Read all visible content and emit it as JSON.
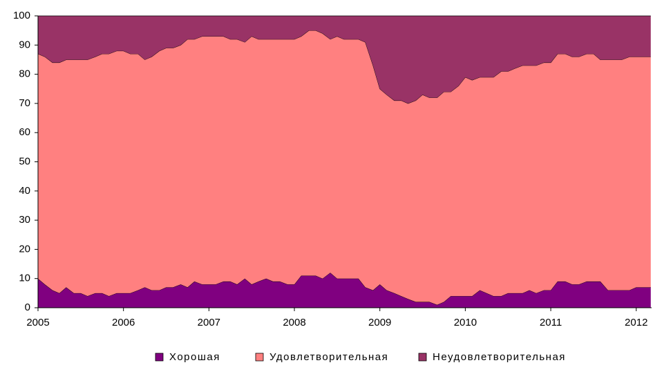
{
  "chart_data": {
    "type": "stacked_area",
    "x": [
      2005,
      2005.08,
      2005.17,
      2005.25,
      2005.33,
      2005.42,
      2005.5,
      2005.58,
      2005.67,
      2005.75,
      2005.83,
      2005.92,
      2006,
      2006.08,
      2006.17,
      2006.25,
      2006.33,
      2006.42,
      2006.5,
      2006.58,
      2006.67,
      2006.75,
      2006.83,
      2006.92,
      2007,
      2007.08,
      2007.17,
      2007.25,
      2007.33,
      2007.42,
      2007.5,
      2007.58,
      2007.67,
      2007.75,
      2007.83,
      2007.92,
      2008,
      2008.08,
      2008.17,
      2008.25,
      2008.33,
      2008.42,
      2008.5,
      2008.58,
      2008.67,
      2008.75,
      2008.83,
      2008.92,
      2009,
      2009.08,
      2009.17,
      2009.25,
      2009.33,
      2009.42,
      2009.5,
      2009.58,
      2009.67,
      2009.75,
      2009.83,
      2009.92,
      2010,
      2010.08,
      2010.17,
      2010.25,
      2010.33,
      2010.42,
      2010.5,
      2010.58,
      2010.67,
      2010.75,
      2010.83,
      2010.92,
      2011,
      2011.08,
      2011.17,
      2011.25,
      2011.33,
      2011.42,
      2011.5,
      2011.58,
      2011.67,
      2011.75,
      2011.83,
      2011.92,
      2012,
      2012.08,
      2012.17
    ],
    "series": [
      {
        "name": "Хорошая",
        "color": "#800080",
        "values": [
          10,
          8,
          6,
          5,
          7,
          5,
          5,
          4,
          5,
          5,
          4,
          5,
          5,
          5,
          6,
          7,
          6,
          6,
          7,
          7,
          8,
          7,
          9,
          8,
          8,
          8,
          9,
          9,
          8,
          10,
          8,
          9,
          10,
          9,
          9,
          8,
          8,
          11,
          11,
          11,
          10,
          12,
          10,
          10,
          10,
          10,
          7,
          6,
          8,
          6,
          5,
          4,
          3,
          2,
          2,
          2,
          1,
          2,
          4,
          4,
          4,
          4,
          6,
          5,
          4,
          4,
          5,
          5,
          5,
          6,
          5,
          6,
          6,
          9,
          9,
          8,
          8,
          9,
          9,
          9,
          6,
          6,
          6,
          6,
          7,
          7,
          7
        ]
      },
      {
        "name": "Удовлетворительная",
        "color": "#ff8080",
        "values": [
          77,
          78,
          78,
          79,
          78,
          80,
          80,
          81,
          81,
          82,
          83,
          83,
          83,
          82,
          81,
          78,
          80,
          82,
          82,
          82,
          82,
          85,
          83,
          85,
          85,
          85,
          84,
          83,
          84,
          81,
          85,
          83,
          82,
          83,
          83,
          84,
          84,
          82,
          84,
          84,
          84,
          80,
          83,
          82,
          82,
          82,
          84,
          77,
          67,
          67,
          66,
          67,
          67,
          69,
          71,
          70,
          71,
          72,
          70,
          72,
          75,
          74,
          73,
          74,
          75,
          77,
          76,
          77,
          78,
          77,
          78,
          78,
          78,
          78,
          78,
          78,
          78,
          78,
          78,
          76,
          79,
          79,
          79,
          80,
          79,
          79,
          79
        ]
      },
      {
        "name": "Неудовлетворительная",
        "color": "#993366",
        "values": [
          13,
          14,
          16,
          16,
          15,
          15,
          15,
          15,
          14,
          13,
          13,
          12,
          12,
          13,
          13,
          15,
          14,
          12,
          11,
          11,
          10,
          8,
          8,
          7,
          7,
          7,
          7,
          8,
          8,
          9,
          7,
          8,
          8,
          8,
          8,
          8,
          8,
          7,
          5,
          5,
          6,
          8,
          7,
          8,
          8,
          8,
          9,
          17,
          25,
          27,
          29,
          29,
          30,
          29,
          27,
          28,
          28,
          26,
          26,
          24,
          21,
          22,
          21,
          21,
          21,
          19,
          19,
          18,
          17,
          17,
          17,
          16,
          16,
          13,
          13,
          14,
          14,
          13,
          13,
          15,
          15,
          15,
          15,
          14,
          14,
          14,
          14
        ]
      }
    ],
    "xlim": [
      2005,
      2012.18
    ],
    "xticks": [
      2005,
      2006,
      2007,
      2008,
      2009,
      2010,
      2011,
      2012
    ],
    "ylim": [
      0,
      100
    ],
    "yticks": [
      0,
      10,
      20,
      30,
      40,
      50,
      60,
      70,
      80,
      90,
      100
    ],
    "legend": "bottom"
  }
}
